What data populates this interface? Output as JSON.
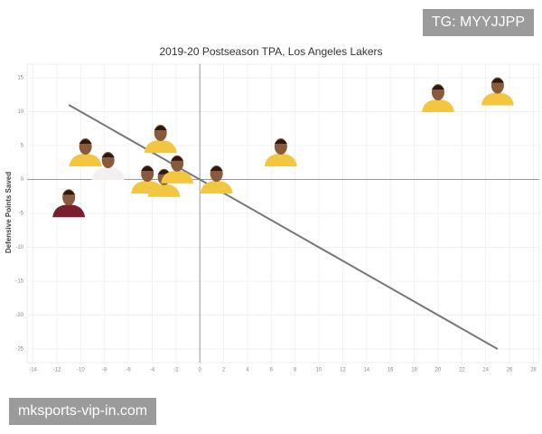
{
  "chart_data": {
    "type": "scatter",
    "title": "2019-20 Postseason TPA, Los Angeles Lakers",
    "y_label": "Defensive Points Saved",
    "x": [
      20,
      25,
      6.8,
      -9.6,
      -7.7,
      -3.3,
      -4.4,
      -3,
      -1.9,
      1.4,
      -11
    ],
    "values": [
      11,
      12,
      3,
      3,
      1,
      5,
      -1,
      -1.5,
      0.5,
      -1,
      -4.5
    ],
    "colors": [
      "#f2c641",
      "#f2c641",
      "#f2c641",
      "#f2c641",
      "#f4f0f0",
      "#f2c641",
      "#f2c641",
      "#f2c641",
      "#f2c641",
      "#f2c641",
      "#7a1f2e"
    ],
    "trendline": {
      "x": [
        -11,
        25
      ],
      "y": [
        11,
        -25
      ],
      "color": "#777777"
    },
    "xlim": [
      -14.5,
      28.5
    ],
    "ylim": [
      -27,
      17
    ],
    "xticks": [
      -14,
      -12,
      -10,
      -8,
      -6,
      -4,
      -2,
      0,
      2,
      4,
      6,
      8,
      10,
      12,
      14,
      16,
      18,
      20,
      22,
      24,
      26,
      28
    ],
    "yticks": [
      -25,
      -20,
      -15,
      -10,
      -5,
      0,
      5,
      10,
      15
    ],
    "grid": true
  },
  "watermarks": [
    "TG: MYYJJPP",
    "mksports-vip-in.com"
  ]
}
